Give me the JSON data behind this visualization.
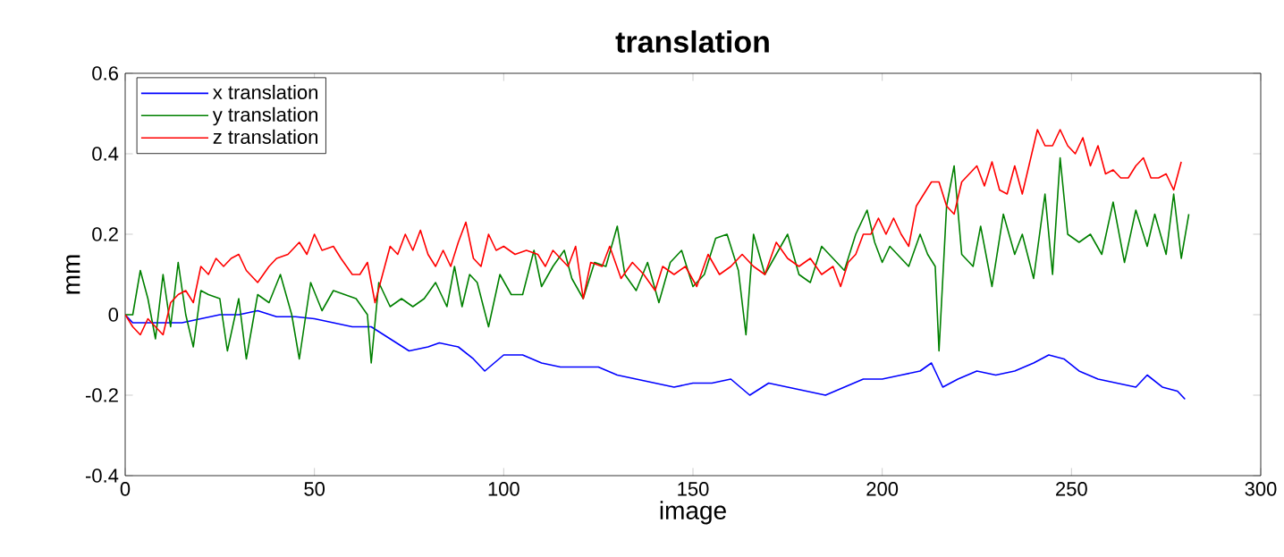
{
  "chart_data": {
    "type": "line",
    "title": "translation",
    "xlabel": "image",
    "ylabel": "mm",
    "xlim": [
      0,
      300
    ],
    "ylim": [
      -0.4,
      0.6
    ],
    "xticks": [
      0,
      50,
      100,
      150,
      200,
      250,
      300
    ],
    "yticks": [
      -0.4,
      -0.2,
      0,
      0.2,
      0.4,
      0.6
    ],
    "legend": "top left",
    "grid": false,
    "marker": "none",
    "line_style": "solid",
    "series": [
      {
        "name": "x translation",
        "color": "#0000ff",
        "x": [
          0,
          2,
          5,
          10,
          15,
          20,
          25,
          30,
          35,
          40,
          45,
          50,
          55,
          60,
          65,
          70,
          75,
          80,
          83,
          88,
          92,
          95,
          100,
          105,
          110,
          115,
          120,
          125,
          130,
          135,
          140,
          145,
          150,
          155,
          160,
          165,
          170,
          175,
          180,
          185,
          190,
          195,
          200,
          205,
          210,
          213,
          216,
          220,
          225,
          230,
          235,
          240,
          244,
          248,
          252,
          257,
          262,
          267,
          270,
          274,
          278,
          280
        ],
        "values": [
          0,
          -0.02,
          -0.02,
          -0.02,
          -0.02,
          -0.01,
          0.0,
          0.0,
          0.01,
          -0.005,
          -0.005,
          -0.01,
          -0.02,
          -0.03,
          -0.03,
          -0.06,
          -0.09,
          -0.08,
          -0.07,
          -0.08,
          -0.11,
          -0.14,
          -0.1,
          -0.1,
          -0.12,
          -0.13,
          -0.13,
          -0.13,
          -0.15,
          -0.16,
          -0.17,
          -0.18,
          -0.17,
          -0.17,
          -0.16,
          -0.2,
          -0.17,
          -0.18,
          -0.19,
          -0.2,
          -0.18,
          -0.16,
          -0.16,
          -0.15,
          -0.14,
          -0.12,
          -0.18,
          -0.16,
          -0.14,
          -0.15,
          -0.14,
          -0.12,
          -0.1,
          -0.11,
          -0.14,
          -0.16,
          -0.17,
          -0.18,
          -0.15,
          -0.18,
          -0.19,
          -0.21
        ]
      },
      {
        "name": "y translation",
        "color": "#008000",
        "x": [
          0,
          2,
          4,
          6,
          8,
          10,
          12,
          14,
          16,
          18,
          20,
          22,
          25,
          27,
          30,
          32,
          35,
          38,
          41,
          44,
          46,
          49,
          52,
          55,
          58,
          61,
          64,
          65,
          67,
          70,
          73,
          76,
          79,
          82,
          85,
          87,
          89,
          91,
          93,
          96,
          99,
          102,
          105,
          108,
          110,
          113,
          116,
          118,
          121,
          124,
          127,
          130,
          132,
          135,
          138,
          141,
          144,
          147,
          150,
          153,
          156,
          159,
          162,
          164,
          166,
          169,
          172,
          175,
          178,
          181,
          184,
          187,
          190,
          193,
          196,
          198,
          200,
          202,
          204,
          207,
          210,
          212,
          214,
          215,
          217,
          219,
          221,
          224,
          226,
          229,
          232,
          235,
          237,
          240,
          243,
          245,
          247,
          249,
          252,
          255,
          258,
          261,
          264,
          267,
          270,
          272,
          275,
          277,
          279,
          281
        ],
        "values": [
          0,
          0.0,
          0.11,
          0.04,
          -0.06,
          0.1,
          -0.03,
          0.13,
          0.0,
          -0.08,
          0.06,
          0.05,
          0.04,
          -0.09,
          0.04,
          -0.11,
          0.05,
          0.03,
          0.1,
          0.0,
          -0.11,
          0.08,
          0.01,
          0.06,
          0.05,
          0.04,
          0.0,
          -0.12,
          0.08,
          0.02,
          0.04,
          0.02,
          0.04,
          0.08,
          0.02,
          0.12,
          0.02,
          0.1,
          0.08,
          -0.03,
          0.1,
          0.05,
          0.05,
          0.16,
          0.07,
          0.12,
          0.16,
          0.09,
          0.04,
          0.13,
          0.12,
          0.22,
          0.1,
          0.06,
          0.13,
          0.03,
          0.13,
          0.16,
          0.07,
          0.1,
          0.19,
          0.2,
          0.11,
          -0.05,
          0.2,
          0.1,
          0.15,
          0.2,
          0.1,
          0.08,
          0.17,
          0.14,
          0.11,
          0.2,
          0.26,
          0.18,
          0.13,
          0.17,
          0.15,
          0.12,
          0.2,
          0.15,
          0.12,
          -0.09,
          0.27,
          0.37,
          0.15,
          0.12,
          0.22,
          0.07,
          0.25,
          0.15,
          0.2,
          0.09,
          0.3,
          0.1,
          0.39,
          0.2,
          0.18,
          0.2,
          0.15,
          0.28,
          0.13,
          0.26,
          0.17,
          0.25,
          0.15,
          0.3,
          0.14,
          0.25
        ]
      },
      {
        "name": "z translation",
        "color": "#ff0000",
        "x": [
          0,
          2,
          4,
          6,
          8,
          10,
          12,
          14,
          16,
          18,
          20,
          22,
          24,
          26,
          28,
          30,
          32,
          35,
          38,
          40,
          43,
          46,
          48,
          50,
          52,
          55,
          57,
          60,
          62,
          64,
          66,
          68,
          70,
          72,
          74,
          76,
          78,
          80,
          82,
          84,
          86,
          88,
          90,
          92,
          94,
          96,
          98,
          100,
          103,
          106,
          109,
          111,
          113,
          115,
          117,
          119,
          121,
          123,
          126,
          128,
          131,
          134,
          137,
          140,
          142,
          145,
          148,
          151,
          154,
          157,
          160,
          163,
          166,
          169,
          172,
          175,
          178,
          181,
          184,
          187,
          189,
          191,
          193,
          195,
          197,
          199,
          201,
          203,
          205,
          207,
          209,
          211,
          213,
          215,
          217,
          219,
          221,
          223,
          225,
          227,
          229,
          231,
          233,
          235,
          237,
          239,
          241,
          243,
          245,
          247,
          249,
          251,
          253,
          255,
          257,
          259,
          261,
          263,
          265,
          267,
          269,
          271,
          273,
          275,
          277,
          279
        ],
        "values": [
          0,
          -0.03,
          -0.05,
          -0.01,
          -0.03,
          -0.05,
          0.03,
          0.05,
          0.06,
          0.03,
          0.12,
          0.1,
          0.14,
          0.12,
          0.14,
          0.15,
          0.11,
          0.08,
          0.12,
          0.14,
          0.15,
          0.18,
          0.15,
          0.2,
          0.16,
          0.17,
          0.14,
          0.1,
          0.1,
          0.13,
          0.03,
          0.1,
          0.17,
          0.15,
          0.2,
          0.16,
          0.21,
          0.15,
          0.12,
          0.16,
          0.12,
          0.18,
          0.23,
          0.14,
          0.12,
          0.2,
          0.16,
          0.17,
          0.15,
          0.16,
          0.15,
          0.12,
          0.16,
          0.14,
          0.12,
          0.17,
          0.04,
          0.13,
          0.12,
          0.17,
          0.09,
          0.13,
          0.1,
          0.06,
          0.12,
          0.1,
          0.12,
          0.07,
          0.15,
          0.1,
          0.12,
          0.15,
          0.12,
          0.1,
          0.18,
          0.14,
          0.12,
          0.14,
          0.1,
          0.12,
          0.07,
          0.13,
          0.15,
          0.2,
          0.2,
          0.24,
          0.2,
          0.24,
          0.2,
          0.17,
          0.27,
          0.3,
          0.33,
          0.33,
          0.27,
          0.25,
          0.33,
          0.35,
          0.37,
          0.32,
          0.38,
          0.31,
          0.3,
          0.37,
          0.3,
          0.38,
          0.46,
          0.42,
          0.42,
          0.46,
          0.42,
          0.4,
          0.44,
          0.37,
          0.42,
          0.35,
          0.36,
          0.34,
          0.34,
          0.37,
          0.39,
          0.34,
          0.34,
          0.35,
          0.31,
          0.38
        ]
      }
    ]
  }
}
